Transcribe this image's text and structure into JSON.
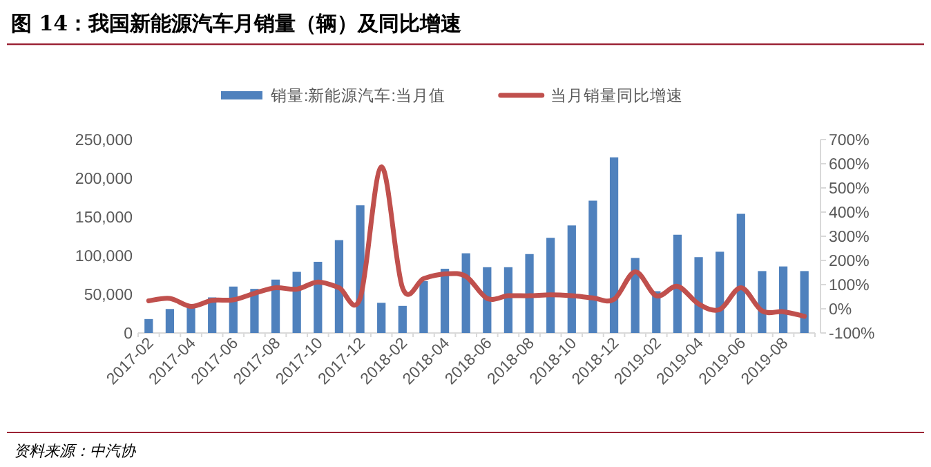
{
  "chart_data": {
    "type": "bar",
    "title": "图 14：我国新能源汽车月销量（辆）及同比增速",
    "categories": [
      "2017-02",
      null,
      "2017-04",
      null,
      "2017-06",
      null,
      "2017-08",
      null,
      "2017-10",
      null,
      "2017-12",
      null,
      "2018-02",
      null,
      "2018-04",
      null,
      "2018-06",
      null,
      "2018-08",
      null,
      "2018-10",
      null,
      "2018-12",
      null,
      "2019-02",
      null,
      "2019-04",
      null,
      "2019-06",
      null,
      "2019-08",
      null
    ],
    "series": [
      {
        "name": "销量:新能源汽车:当月值",
        "color": "#4f81bd",
        "values": [
          18000,
          31000,
          36000,
          46000,
          60000,
          57000,
          69000,
          79000,
          92000,
          120000,
          165000,
          39000,
          35000,
          67000,
          83000,
          103000,
          85000,
          85000,
          102000,
          123000,
          139000,
          171000,
          227000,
          97000,
          54000,
          127000,
          98000,
          105000,
          154000,
          80000,
          86000,
          80000
        ]
      },
      {
        "name": "当月销量同比增速",
        "type": "line",
        "axis": "y2",
        "color": "#c0504d",
        "values": [
          33,
          43,
          10,
          35,
          37,
          64,
          87,
          81,
          111,
          87,
          45,
          587,
          87,
          125,
          144,
          134,
          43,
          54,
          54,
          58,
          54,
          45,
          39,
          153,
          54,
          93,
          20,
          -3,
          87,
          -9,
          -12,
          -31
        ]
      }
    ],
    "ylim": [
      0,
      250000
    ],
    "yticks": [
      0,
      {
        "value": 50000,
        "label": "50,000"
      },
      {
        "value": 100000,
        "label": "100,000"
      },
      {
        "value": 150000,
        "label": "150,000"
      },
      {
        "value": 200000,
        "label": "200,000"
      },
      {
        "value": 250000,
        "label": "250,000"
      }
    ],
    "y2lim": [
      -100,
      700
    ],
    "y2ticks": [
      {
        "value": -100,
        "label": "-100%"
      },
      {
        "value": 0,
        "label": "0%"
      },
      {
        "value": 100,
        "label": "100%"
      },
      {
        "value": 200,
        "label": "200%"
      },
      {
        "value": 300,
        "label": "300%"
      },
      {
        "value": 400,
        "label": "400%"
      },
      {
        "value": 500,
        "label": "500%"
      },
      {
        "value": 600,
        "label": "600%"
      },
      {
        "value": 700,
        "label": "700%"
      }
    ],
    "legend": "top",
    "annotations": [
      "资料来源：中汽协"
    ]
  }
}
